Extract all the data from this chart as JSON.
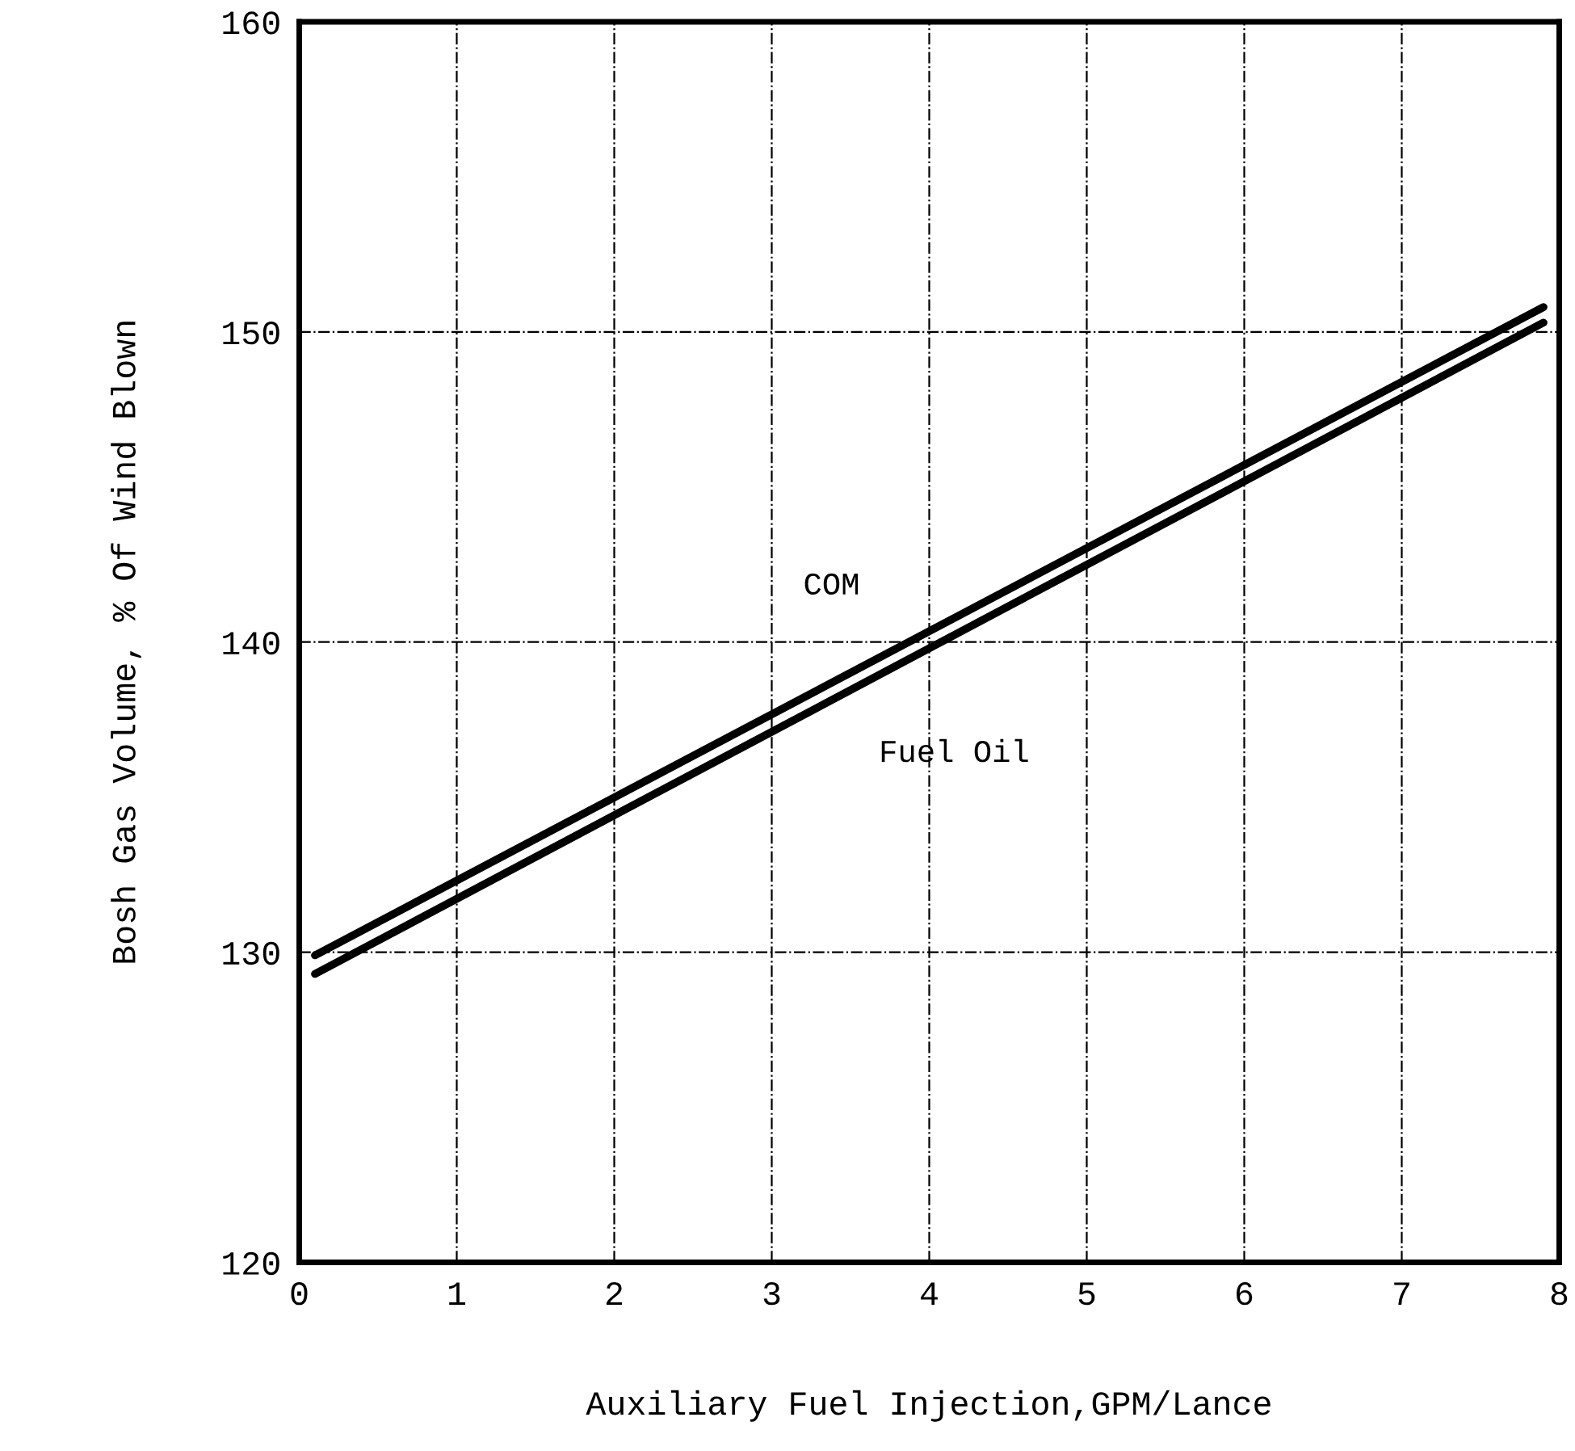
{
  "chart_data": {
    "type": "line",
    "xlabel": "Auxiliary Fuel Injection,GPM/Lance",
    "ylabel": "Bosh Gas Volume, % Of Wind Blown",
    "x": [
      0.1,
      7.9
    ],
    "series": [
      {
        "name": "COM",
        "color": "#000000",
        "values": [
          129.9,
          150.8
        ]
      },
      {
        "name": "Fuel Oil",
        "color": "#000000",
        "values": [
          129.3,
          150.3
        ]
      }
    ],
    "xlim": [
      0,
      8
    ],
    "xticks": [
      0,
      1,
      2,
      3,
      4,
      5,
      6,
      7,
      8
    ],
    "ylim": [
      120,
      160
    ],
    "yticks": [
      120,
      130,
      140,
      150,
      160
    ],
    "grid": true,
    "marker": "none",
    "line_style": "solid"
  }
}
